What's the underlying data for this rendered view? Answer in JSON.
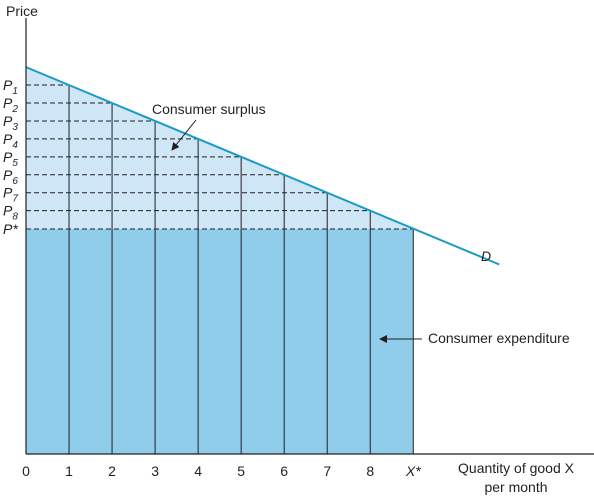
{
  "chart_data": {
    "type": "area",
    "title": "",
    "ylabel": "Price",
    "xlabel_line1": "Quantity of good X",
    "xlabel_line2": "per month",
    "x_ticks": [
      "0",
      "1",
      "2",
      "3",
      "4",
      "5",
      "6",
      "7",
      "8",
      "X*"
    ],
    "price_labels": [
      {
        "base": "P",
        "sub": "1"
      },
      {
        "base": "P",
        "sub": "2"
      },
      {
        "base": "P",
        "sub": "3"
      },
      {
        "base": "P",
        "sub": "4"
      },
      {
        "base": "P",
        "sub": "5"
      },
      {
        "base": "P",
        "sub": "6"
      },
      {
        "base": "P",
        "sub": "7"
      },
      {
        "base": "P",
        "sub": "8"
      },
      {
        "base": "P*",
        "sub": ""
      }
    ],
    "demand": {
      "label": "D",
      "x": [
        0,
        11
      ],
      "y": [
        9.8,
        4.8
      ]
    },
    "equilibrium": {
      "quantity": 9,
      "price": 5.7
    },
    "xlim": [
      0,
      13.2
    ],
    "ylim": [
      0,
      11.5
    ],
    "annotations": {
      "consumer_surplus": "Consumer surplus",
      "consumer_expenditure": "Consumer expenditure"
    },
    "colors": {
      "surplus_fill": "#cfe6f6",
      "expenditure_fill": "#8fcdea",
      "demand_line": "#1a9bc4",
      "axis": "#231f20"
    }
  }
}
